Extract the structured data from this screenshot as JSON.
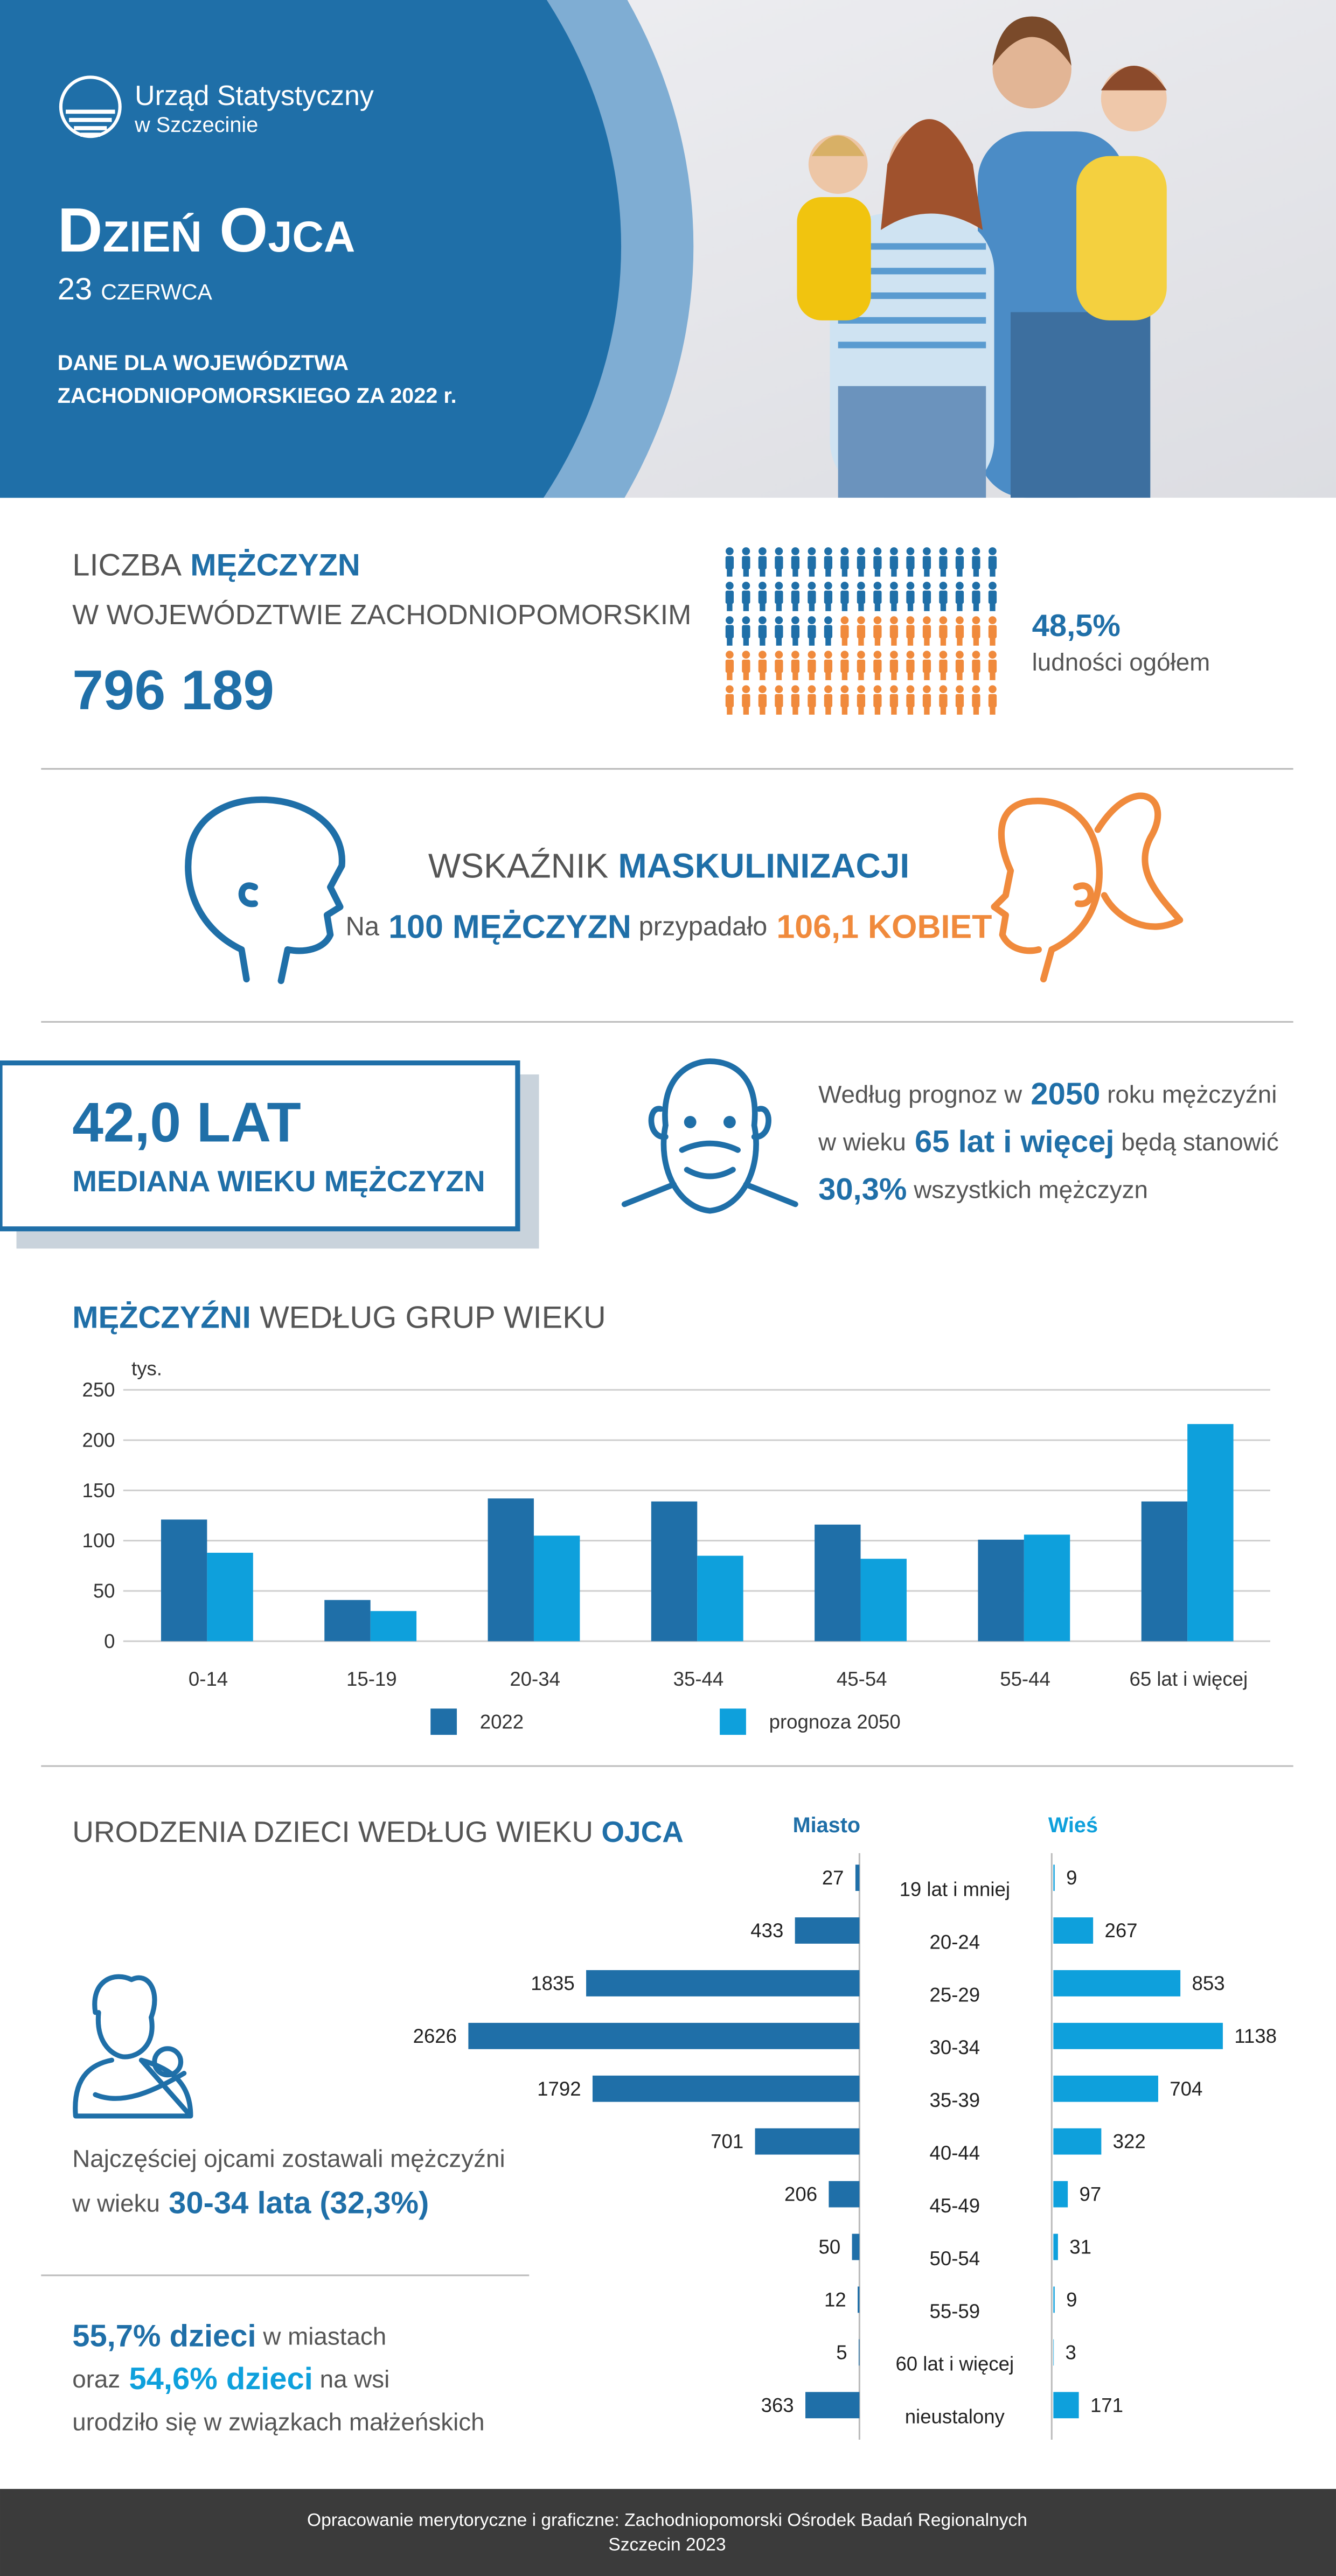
{
  "header": {
    "org_name": "Urząd Statystyczny",
    "org_city": "w Szczecinie",
    "title": "Dzień Ojca",
    "date": "23 czerwca",
    "note_lines": [
      "DANE DLA WOJEWÓDZTWA",
      "ZACHODNIOPOMORSKIEGO ZA 2022 r."
    ]
  },
  "men_count": {
    "label_start": "LICZBA",
    "label_highlight": "MĘŻCZYZN",
    "label_line2": "W WOJEWÓDZTWIE ZACHODNIOPOMORSKIM",
    "value": "796 189",
    "share": {
      "value": 48.5,
      "label": "48,5%"
    },
    "share_caption": "ludności ogółem",
    "colors": {
      "men": "#1f6fa8",
      "women": "#f08a3c"
    }
  },
  "masculinity": {
    "title_start": "WSKAŹNIK",
    "title_highlight": "MASKULINIZACJI",
    "line": [
      "Na",
      "100 MĘŻCZYZN",
      "przypadało",
      "106,1 KOBIET"
    ]
  },
  "median_age": {
    "value": "42,0 LAT",
    "caption": "MEDIANA WIEKU MĘŻCZYZN"
  },
  "forecast": {
    "lines": [
      [
        "Według prognoz w",
        "2050",
        "roku mężczyźni"
      ],
      [
        "w wieku",
        "65 lat i więcej",
        "będą stanowić"
      ],
      [
        "30,3%",
        "wszystkich mężczyzn"
      ]
    ]
  },
  "chart_data": [
    {
      "type": "bar",
      "title": [
        "MĘŻCZYŹNI",
        "WEDŁUG GRUP WIEKU"
      ],
      "unit": "tys.",
      "categories": [
        "0-14",
        "15-19",
        "20-34",
        "35-44",
        "45-54",
        "55-44",
        "65 lat i więcej"
      ],
      "series": [
        {
          "name": "2022",
          "color": "#1f6fa8",
          "values": [
            121,
            41,
            142,
            139,
            116,
            101,
            139
          ]
        },
        {
          "name": "prognoza 2050",
          "color": "#0ea0dc",
          "values": [
            88,
            30,
            105,
            85,
            82,
            106,
            216
          ]
        }
      ],
      "ylim": [
        0,
        250
      ],
      "yticks": [
        0,
        50,
        100,
        150,
        200,
        250
      ],
      "grid": true
    },
    {
      "type": "butterfly",
      "title": [
        "URODZENIA DZIECI WEDŁUG WIEKU",
        "OJCA"
      ],
      "categories": [
        "19 lat i mniej",
        "20-24",
        "25-29",
        "30-34",
        "35-39",
        "40-44",
        "45-49",
        "50-54",
        "55-59",
        "60 lat i więcej",
        "nieustalony"
      ],
      "series": [
        {
          "name": "Miasto",
          "color": "#1f6fa8",
          "values": [
            27,
            433,
            1835,
            2626,
            1792,
            701,
            206,
            50,
            12,
            5,
            363
          ]
        },
        {
          "name": "Wieś",
          "color": "#0ea0dc",
          "values": [
            9,
            267,
            853,
            1138,
            704,
            322,
            97,
            31,
            9,
            3,
            171
          ]
        }
      ]
    }
  ],
  "births_notes": {
    "most_common": [
      "Najczęściej ojcami zostawali mężczyźni",
      "w wieku",
      "30-34 lata (32,3%)"
    ],
    "marital": [
      [
        "55,7% dzieci",
        "w miastach"
      ],
      [
        "oraz",
        "54,6% dzieci",
        "na wsi"
      ],
      [
        "urodziło się w związkach małżeńskich"
      ]
    ]
  },
  "footer": {
    "lines": [
      "Opracowanie merytoryczne i graficzne: Zachodniopomorski Ośrodek Badań Regionalnych",
      "Szczecin 2023"
    ]
  }
}
